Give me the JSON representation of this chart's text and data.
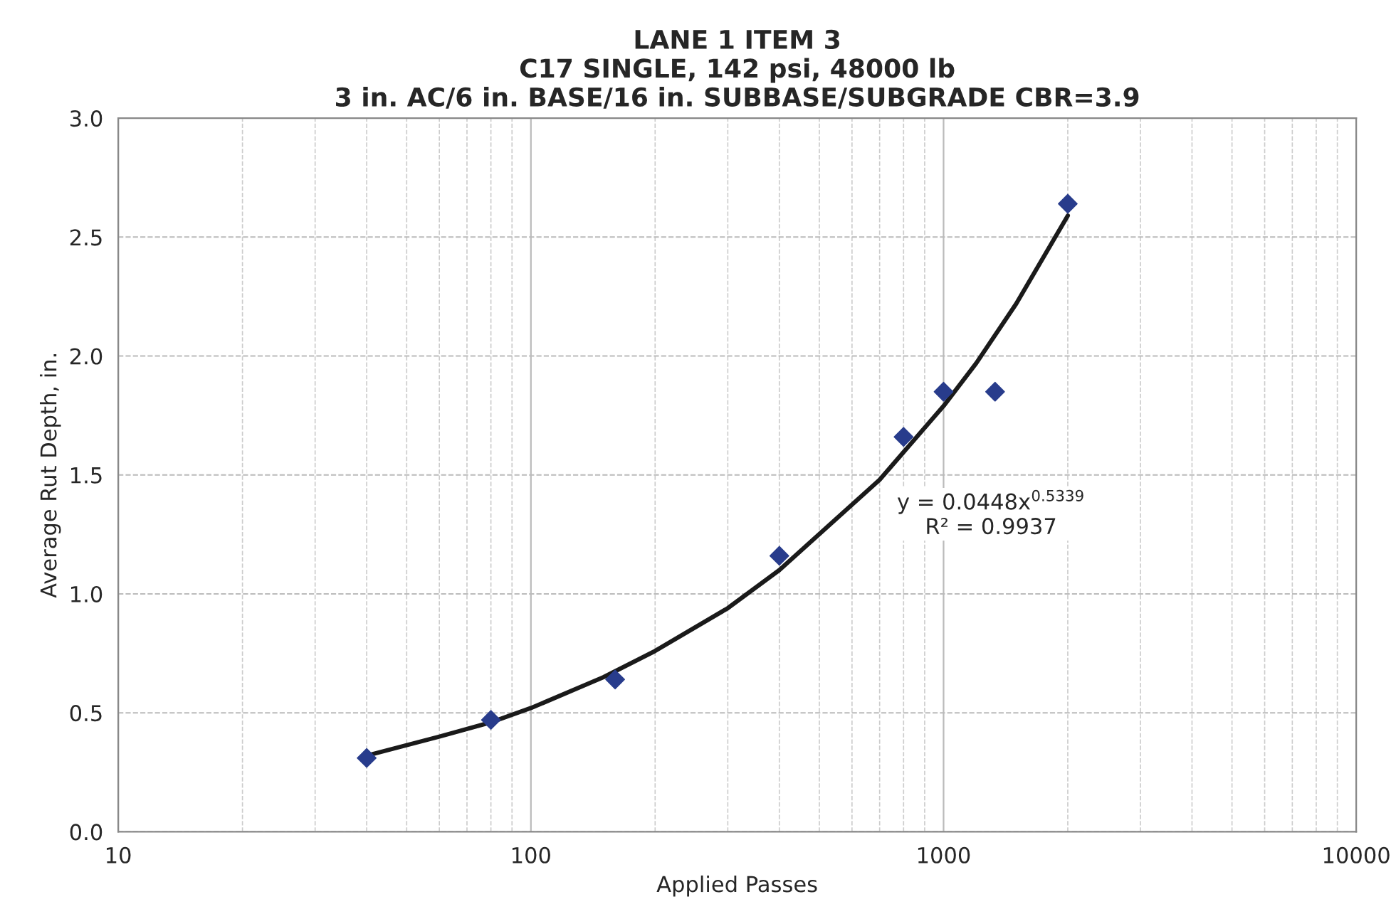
{
  "chart_data": {
    "type": "scatter",
    "title": "LANE 1 ITEM 3\nC17 SINGLE, 142 psi, 48000 lb\n3 in. AC/6 in. BASE/16 in. SUBBASE/SUBGRADE CBR=3.9",
    "xlabel": "Applied Passes",
    "ylabel": "Average Rut Depth, in.",
    "log": "x",
    "xlim": [
      10,
      10000
    ],
    "xticks": [
      10,
      100,
      1000,
      10000
    ],
    "ylim": [
      0.0,
      3.0
    ],
    "yticks": [
      {
        "value": 0,
        "label": "0.0"
      },
      {
        "value": 0.5,
        "label": "0.5"
      },
      {
        "value": 1,
        "label": "1.0"
      },
      {
        "value": 1.5,
        "label": "1.5"
      },
      {
        "value": 2,
        "label": "2.0"
      },
      {
        "value": 2.5,
        "label": "2.5"
      },
      {
        "value": 3,
        "label": "3.0"
      }
    ],
    "grid": true,
    "legend": false,
    "marker": "diamond",
    "series": [
      {
        "color": "#283c8c",
        "x": [
          40,
          80,
          160,
          400,
          800,
          1000,
          1333,
          2000
        ],
        "values": [
          0.31,
          0.47,
          0.64,
          1.16,
          1.66,
          1.85,
          1.85,
          2.64
        ]
      },
      {
        "type": "line",
        "color": "#1a1a1a",
        "marker": "none",
        "line_style": "solid",
        "x": [
          40,
          60,
          80,
          100,
          150,
          200,
          300,
          400,
          700,
          1000,
          1200,
          1500,
          2000
        ],
        "values": [
          0.32,
          0.4,
          0.46,
          0.52,
          0.65,
          0.76,
          0.94,
          1.1,
          1.48,
          1.79,
          1.97,
          2.22,
          2.59
        ]
      }
    ],
    "annotations": [
      "y = 0.0448x$^{0.5339}$\nR² = 0.9937"
    ]
  }
}
